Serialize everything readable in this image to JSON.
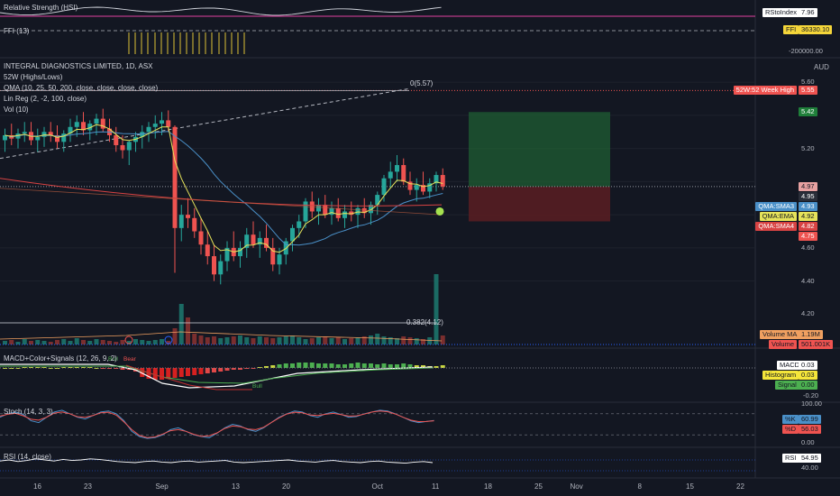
{
  "title": "INTEGRAL DIAGNOSTICS LIMITED, 1D, ASX",
  "currency": "AUD",
  "colors": {
    "up": "#26a69a",
    "down": "#ef5350",
    "bg": "#131722",
    "grid": "#1e222d",
    "sma3": "#4a90c8",
    "ema": "#e6e35a",
    "sma4": "#d84343",
    "gold": "#f5d63a"
  },
  "top_indicators": {
    "relative_strength_label": "Relative Strength (HSI)",
    "fff_label": "FFI (13)",
    "rs_tag_name": "RStoIndex",
    "rs_tag_value": "7.96",
    "fff_tag_name": "FFI",
    "fff_tag_value": "36330.10",
    "fff_axis_value": "-200000.00"
  },
  "overlays": [
    "INTEGRAL DIAGNOSTICS LIMITED, 1D, ASX",
    "52W (Highs/Lows)",
    "QMA (10, 25, 50, 200, close, close, close, close)",
    "Lin Reg (2, -2, 100, close)"
  ],
  "annotations": {
    "fib_top": "0(5.57)",
    "fib_mid": "0.382(4.12)",
    "vol_label": "Vol (10)"
  },
  "price_axis": {
    "labels": [
      "5.60",
      "5.20",
      "4.80",
      "4.60",
      "4.40",
      "4.20"
    ]
  },
  "price_tags": [
    {
      "text": "52W:52 Week High",
      "value": "5.55",
      "color": "#ef5350"
    },
    {
      "text": "",
      "value": "5.42",
      "color": "#1f7f3a"
    },
    {
      "text": "",
      "value": "4.97",
      "color": "#e7a1a1"
    },
    {
      "text": "",
      "value": "4.95",
      "color": "#2a2e39"
    },
    {
      "text": "QMA:SMA3",
      "value": "4.93",
      "color": "#4a90c8"
    },
    {
      "text": "QMA:EMA",
      "value": "4.92",
      "color": "#e6e35a"
    },
    {
      "text": "QMA:SMA4",
      "value": "4.82",
      "color": "#d84343"
    },
    {
      "text": "",
      "value": "4.75",
      "color": "#ef5350"
    }
  ],
  "volume_tags": [
    {
      "text": "Volume MA",
      "value": "1.19M",
      "color": "#f0a060"
    },
    {
      "text": "Volume",
      "value": "501.001K",
      "color": "#ef5350"
    }
  ],
  "macd": {
    "label": "MACD+Color+Signals (12, 26, 9, 2)",
    "tags": [
      {
        "text": "MACD",
        "value": "0.03",
        "color": "#ffffff"
      },
      {
        "text": "Histogram",
        "value": "0.03",
        "color": "#f5e63a"
      },
      {
        "text": "Signal",
        "value": "0.00",
        "color": "#4caf50"
      }
    ],
    "axis_value": "-0.20",
    "markers": [
      "Bear",
      "Bull",
      "Bull"
    ]
  },
  "stoch": {
    "label": "Stoch (14, 3, 3)",
    "tags": [
      {
        "text": "%K",
        "value": "60.99",
        "color": "#4a90c8"
      },
      {
        "text": "%D",
        "value": "56.03",
        "color": "#ef5350"
      }
    ],
    "axis_top": "100.00",
    "axis_bottom": "0.00"
  },
  "rsi": {
    "label": "RSI (14, close)",
    "tag_text": "RSI",
    "tag_value": "54.95",
    "axis_value": "40.00"
  },
  "x_axis_labels": [
    "16",
    "23",
    "Sep",
    "13",
    "20",
    "Oct",
    "11",
    "18",
    "25",
    "Nov",
    "8",
    "15",
    "22"
  ],
  "chart_data": {
    "type": "candlestick",
    "title": "INTEGRAL DIAGNOSTICS LIMITED, 1D, ASX",
    "ylim": [
      4.3,
      5.65
    ],
    "candles": [
      [
        5.25,
        5.32,
        5.18,
        5.28
      ],
      [
        5.28,
        5.35,
        5.22,
        5.26
      ],
      [
        5.26,
        5.32,
        5.2,
        5.29
      ],
      [
        5.29,
        5.36,
        5.24,
        5.3
      ],
      [
        5.3,
        5.36,
        5.22,
        5.25
      ],
      [
        5.25,
        5.32,
        5.18,
        5.27
      ],
      [
        5.27,
        5.33,
        5.21,
        5.3
      ],
      [
        5.3,
        5.36,
        5.24,
        5.28
      ],
      [
        5.28,
        5.34,
        5.2,
        5.24
      ],
      [
        5.24,
        5.31,
        5.18,
        5.29
      ],
      [
        5.29,
        5.38,
        5.24,
        5.33
      ],
      [
        5.33,
        5.4,
        5.27,
        5.36
      ],
      [
        5.36,
        5.42,
        5.28,
        5.31
      ],
      [
        5.31,
        5.37,
        5.25,
        5.35
      ],
      [
        5.35,
        5.41,
        5.28,
        5.38
      ],
      [
        5.38,
        5.44,
        5.3,
        5.32
      ],
      [
        5.32,
        5.38,
        5.24,
        5.28
      ],
      [
        5.28,
        5.33,
        5.18,
        5.22
      ],
      [
        5.22,
        5.28,
        5.14,
        5.19
      ],
      [
        5.19,
        5.25,
        5.1,
        5.24
      ],
      [
        5.24,
        5.3,
        5.18,
        5.27
      ],
      [
        5.27,
        5.34,
        5.2,
        5.3
      ],
      [
        5.3,
        5.36,
        5.24,
        5.33
      ],
      [
        5.33,
        5.4,
        5.26,
        5.35
      ],
      [
        5.35,
        5.42,
        5.28,
        5.37
      ],
      [
        5.37,
        5.43,
        5.3,
        5.33
      ],
      [
        5.33,
        5.34,
        4.45,
        4.72
      ],
      [
        4.72,
        4.86,
        4.64,
        4.8
      ],
      [
        4.8,
        4.9,
        4.72,
        4.78
      ],
      [
        4.78,
        4.84,
        4.66,
        4.7
      ],
      [
        4.7,
        4.78,
        4.56,
        4.62
      ],
      [
        4.62,
        4.7,
        4.5,
        4.55
      ],
      [
        4.55,
        4.62,
        4.4,
        4.44
      ],
      [
        4.44,
        4.56,
        4.38,
        4.52
      ],
      [
        4.52,
        4.64,
        4.46,
        4.6
      ],
      [
        4.6,
        4.7,
        4.52,
        4.55
      ],
      [
        4.55,
        4.64,
        4.48,
        4.6
      ],
      [
        4.6,
        4.72,
        4.54,
        4.68
      ],
      [
        4.68,
        4.76,
        4.6,
        4.62
      ],
      [
        4.62,
        4.7,
        4.54,
        4.66
      ],
      [
        4.66,
        4.74,
        4.58,
        4.6
      ],
      [
        4.6,
        4.66,
        4.46,
        4.5
      ],
      [
        4.5,
        4.6,
        4.44,
        4.56
      ],
      [
        4.56,
        4.66,
        4.5,
        4.64
      ],
      [
        4.64,
        4.74,
        4.58,
        4.72
      ],
      [
        4.72,
        4.8,
        4.66,
        4.76
      ],
      [
        4.76,
        4.9,
        4.72,
        4.88
      ],
      [
        4.88,
        4.94,
        4.78,
        4.82
      ],
      [
        4.82,
        4.9,
        4.74,
        4.86
      ],
      [
        4.86,
        4.92,
        4.78,
        4.8
      ],
      [
        4.8,
        4.88,
        4.74,
        4.84
      ],
      [
        4.84,
        4.9,
        4.76,
        4.78
      ],
      [
        4.78,
        4.86,
        4.72,
        4.82
      ],
      [
        4.82,
        4.88,
        4.76,
        4.8
      ],
      [
        4.8,
        4.86,
        4.72,
        4.84
      ],
      [
        4.84,
        4.9,
        4.78,
        4.81
      ],
      [
        4.81,
        4.88,
        4.74,
        4.86
      ],
      [
        4.86,
        4.94,
        4.8,
        4.92
      ],
      [
        4.92,
        5.04,
        4.88,
        5.02
      ],
      [
        5.02,
        5.12,
        4.96,
        5.06
      ],
      [
        5.06,
        5.16,
        5.0,
        5.1
      ],
      [
        5.1,
        5.14,
        4.98,
        5.0
      ],
      [
        5.0,
        5.06,
        4.92,
        4.95
      ],
      [
        4.95,
        5.02,
        4.88,
        4.98
      ],
      [
        4.98,
        5.06,
        4.92,
        4.94
      ],
      [
        4.94,
        5.02,
        4.9,
        4.99
      ],
      [
        4.99,
        5.06,
        4.94,
        5.04
      ],
      [
        5.04,
        5.08,
        4.95,
        4.97
      ]
    ]
  }
}
